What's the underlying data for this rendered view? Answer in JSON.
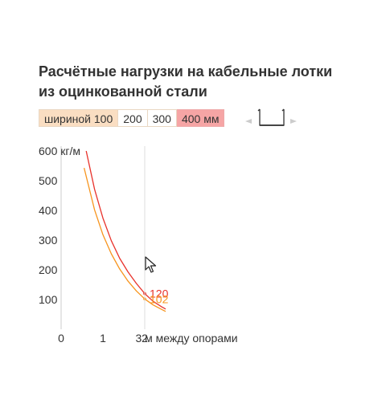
{
  "title": {
    "line1": "Расчётные нагрузки на кабельные лотки",
    "line2": "из оцинкованной стали"
  },
  "width_selector": {
    "options": [
      "шириной 100",
      "200",
      "300",
      "400 мм"
    ],
    "active_index": 3
  },
  "tray_icon": "cable-tray-profile-icon",
  "colors": {
    "series_400": "#e8322b",
    "series_100": "#f7941d",
    "highlight_100": "#fadec2",
    "highlight_400": "#f6a5a5"
  },
  "chart_data": {
    "type": "line",
    "xlabel": "м между опорами",
    "ylabel": "кг/м",
    "xlim": [
      0,
      2.5
    ],
    "ylim": [
      0,
      600
    ],
    "x_ticks": [
      "0",
      "1",
      "2",
      "3"
    ],
    "y_ticks": [
      "100",
      "200",
      "300",
      "400",
      "500",
      "600"
    ],
    "y_tick_values": [
      100,
      200,
      300,
      400,
      500,
      600
    ],
    "x_tick_values": [
      0,
      1,
      2,
      3
    ],
    "cursor_x": 2,
    "series": [
      {
        "color": "#e8322b",
        "x": [
          0.6,
          0.8,
          1.0,
          1.2,
          1.4,
          1.6,
          1.8,
          2.0,
          2.2,
          2.4,
          2.5
        ],
        "y": [
          600,
          471,
          374,
          298,
          239,
          193,
          154,
          120,
          94,
          76,
          68
        ],
        "marker_x": 2,
        "marker_value": "120"
      },
      {
        "color": "#f7941d",
        "x": [
          0.55,
          0.8,
          1.0,
          1.2,
          1.4,
          1.6,
          1.8,
          2.0,
          2.2,
          2.4,
          2.5
        ],
        "y": [
          543,
          402,
          318,
          254,
          203,
          162,
          129,
          102,
          82,
          67,
          60
        ],
        "marker_x": 2,
        "marker_value": "102"
      }
    ]
  }
}
